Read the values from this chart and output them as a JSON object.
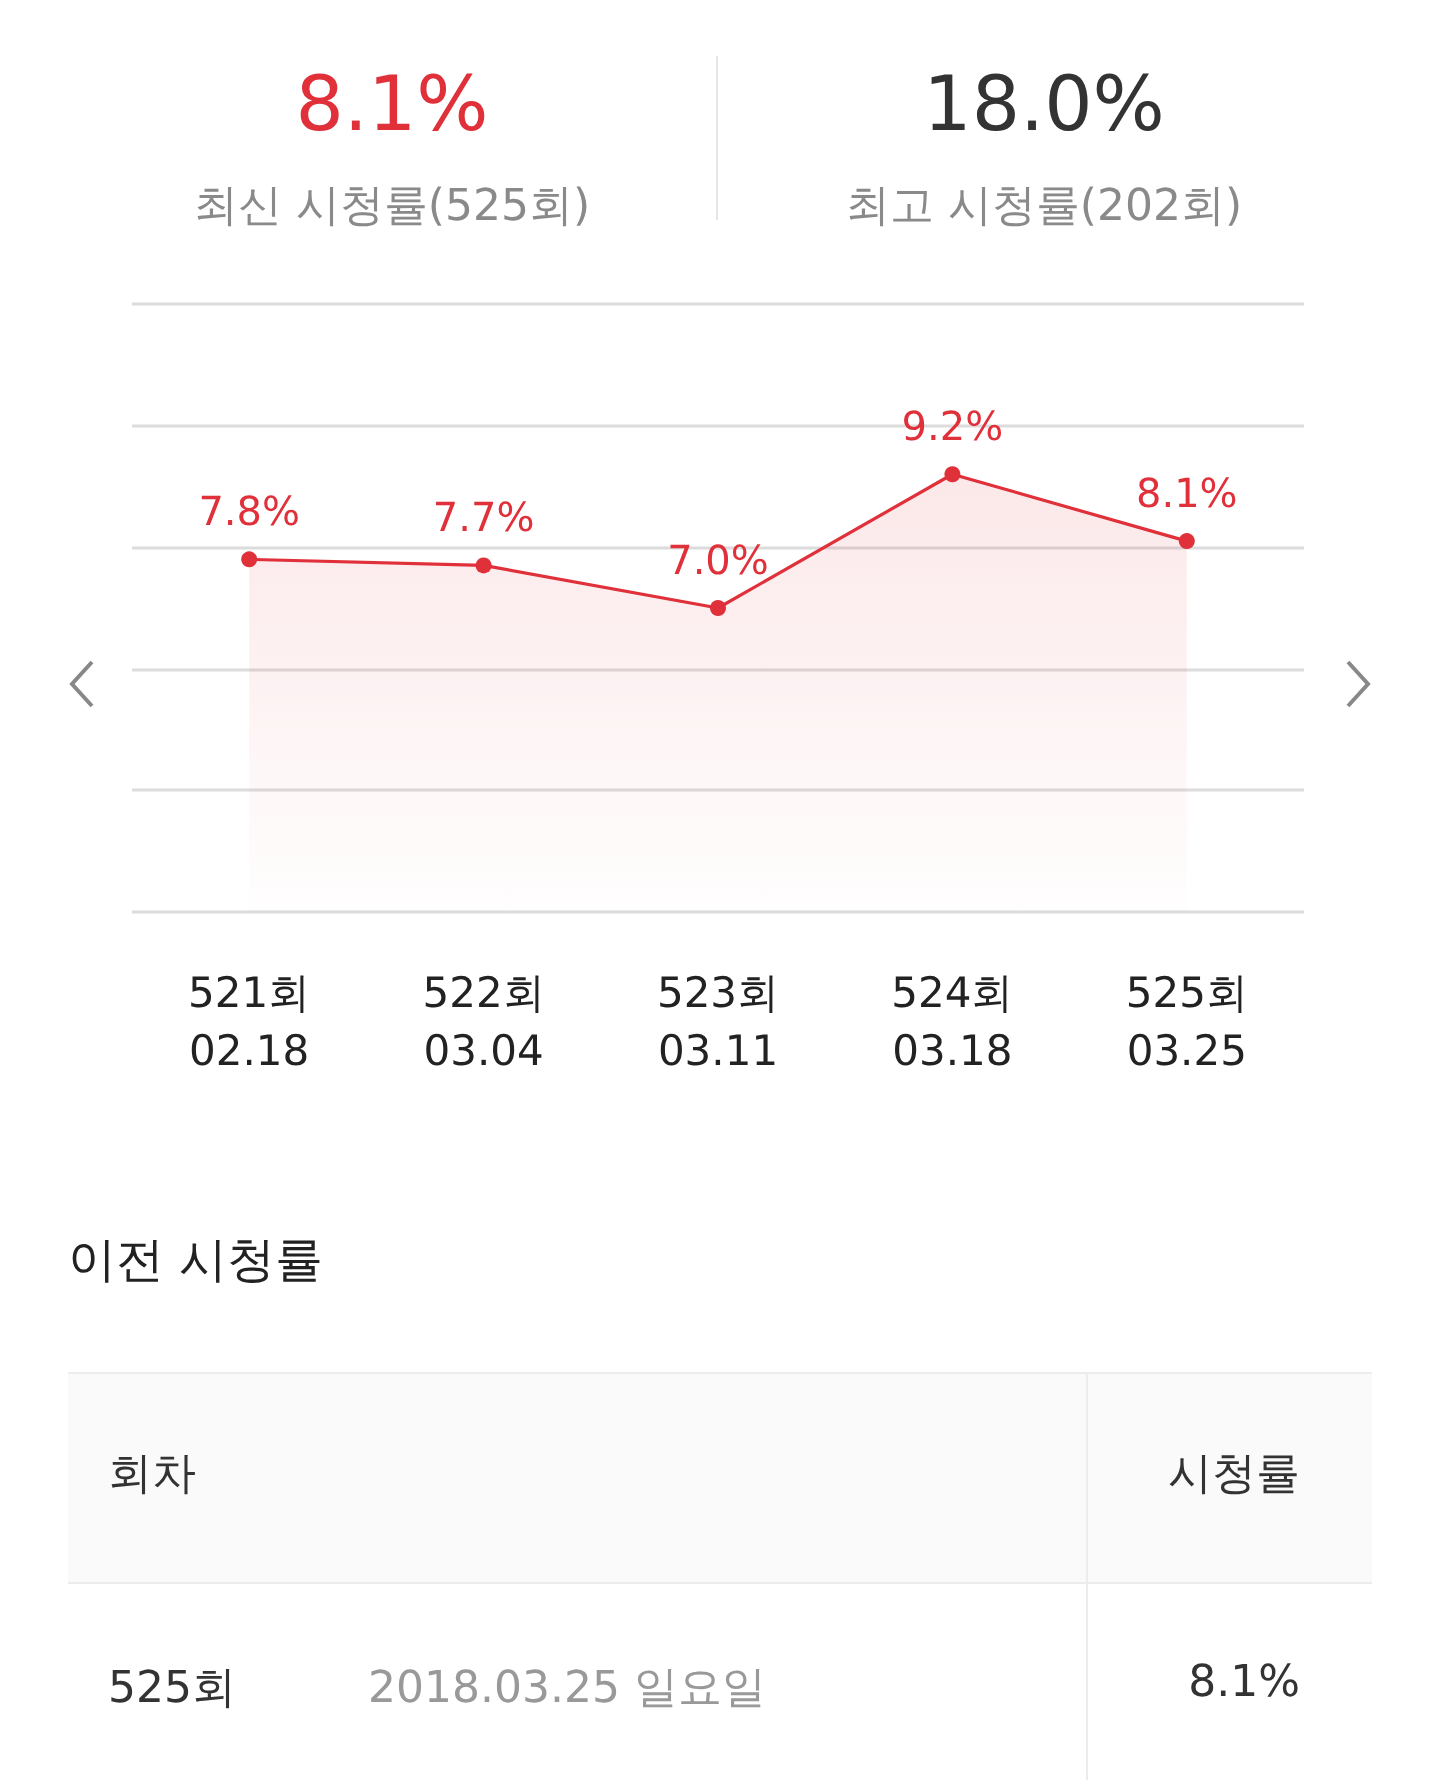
{
  "chart_data": {
    "type": "area",
    "categories": [
      "521회\n02.18",
      "522회\n03.04",
      "523회\n03.11",
      "524회\n03.18",
      "525회\n03.25"
    ],
    "series": [
      {
        "color": "#e0303a",
        "values": [
          7.8,
          7.7,
          7.0,
          9.2,
          8.1
        ],
        "value_labels": [
          "7.8%",
          "7.7%",
          "7.0%",
          "9.2%",
          "8.1%"
        ]
      }
    ],
    "ylim": [
      2,
      12
    ],
    "yticks": [
      {
        "value": 2,
        "label": null
      },
      {
        "value": 4,
        "label": null
      },
      {
        "value": 6,
        "label": null
      },
      {
        "value": 8,
        "label": null
      },
      {
        "value": 10,
        "label": null
      },
      {
        "value": 12,
        "label": null
      }
    ],
    "tick_labels": "x",
    "grid": "y",
    "marker": "circle",
    "annotations": [
      "8.1%",
      "최신 시청률(525회)",
      "18.0%",
      "최고 시청률(202회)",
      "이전 시청률",
      "회차",
      "시청률",
      "525회",
      "2018.03.25 일요일",
      "8.1%"
    ]
  }
}
